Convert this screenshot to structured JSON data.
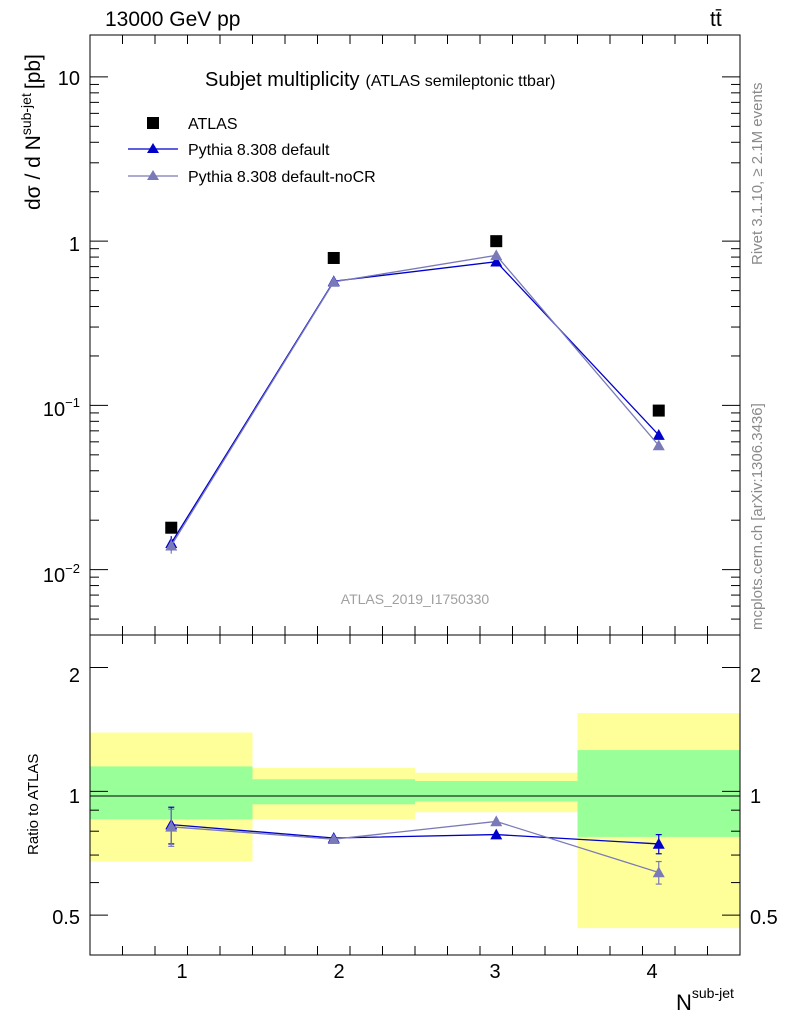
{
  "header": {
    "left": "13000 GeV pp",
    "right": "tt̄"
  },
  "side_labels": {
    "rivet": "Rivet 3.1.10, ≥ 2.1M events",
    "mcplots": "mcplots.cern.ch [arXiv:1306.3436]"
  },
  "watermark": "ATLAS_2019_I1750330",
  "main_panel": {
    "title": "Subjet multiplicity",
    "title_small": "(ATLAS semileptonic ttbar)",
    "ylabel": "dσ / d N",
    "ylabel_sup": "sub-jet",
    "ylabel_unit": "[pb]",
    "ytick_labels": {
      "1e-2_base": "10",
      "1e-2_exp": "−2",
      "1e-1_base": "10",
      "1e-1_exp": "−1",
      "1": "1",
      "10": "10"
    }
  },
  "ratio_panel": {
    "ylabel": "Ratio to ATLAS",
    "ytick_labels": [
      "0.5",
      "1",
      "2"
    ]
  },
  "xaxis": {
    "label": "N",
    "label_sup": "sub-jet",
    "tick_labels": [
      "1",
      "2",
      "3",
      "4"
    ]
  },
  "legend": [
    {
      "label": "ATLAS",
      "marker": "square",
      "color": "#000000"
    },
    {
      "label": "Pythia 8.308 default",
      "marker": "triangle",
      "color": "#0000cc"
    },
    {
      "label": "Pythia 8.308 default-noCR",
      "marker": "triangle",
      "color": "#7a7ab8"
    }
  ],
  "chart_data": {
    "type": "line",
    "x": [
      1,
      2,
      3,
      4
    ],
    "xlim": [
      0.5,
      4.5
    ],
    "ylim_main": [
      0.004,
      18
    ],
    "yscale_main": "log",
    "ylim_ratio": [
      0.4,
      2.4
    ],
    "yscale_ratio": "log",
    "series": [
      {
        "name": "ATLAS",
        "values": [
          0.018,
          0.79,
          1.0,
          0.093
        ],
        "color": "#000000"
      },
      {
        "name": "Pythia 8.308 default",
        "values": [
          0.0145,
          0.57,
          0.75,
          0.066
        ],
        "errors": [
          0.0015,
          0.01,
          0.01,
          0.003
        ],
        "color": "#0000cc"
      },
      {
        "name": "Pythia 8.308 default-noCR",
        "values": [
          0.014,
          0.565,
          0.82,
          0.057
        ],
        "errors": [
          0.0015,
          0.01,
          0.01,
          0.003
        ],
        "color": "#7a7ab8"
      }
    ],
    "ratio": {
      "Pythia 8.308 default": [
        0.83,
        0.77,
        0.785,
        0.745
      ],
      "Pythia 8.308 default-noCR": [
        0.82,
        0.765,
        0.845,
        0.635
      ],
      "errors": [
        0.085,
        0.01,
        0.01,
        0.04
      ]
    },
    "bands": {
      "bin_edges": [
        0.5,
        1.5,
        2.5,
        3.5,
        4.5
      ],
      "inner_lo": [
        0.855,
        0.93,
        0.945,
        0.775
      ],
      "inner_hi": [
        1.15,
        1.07,
        1.06,
        1.26
      ],
      "outer_lo": [
        0.675,
        0.855,
        0.89,
        0.465
      ],
      "outer_hi": [
        1.39,
        1.14,
        1.11,
        1.55
      ],
      "inner_color": "#99ff99",
      "outer_color": "#ffff99"
    }
  }
}
